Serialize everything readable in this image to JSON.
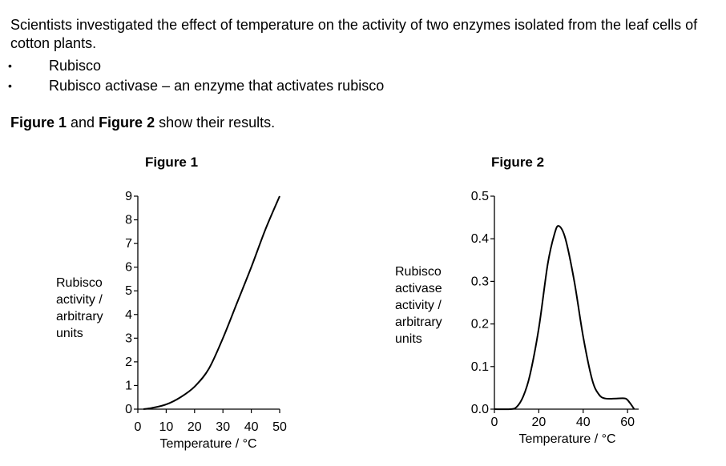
{
  "intro": "Scientists investigated the effect of temperature on the activity of two enzymes isolated from the leaf cells of cotton plants.",
  "bullets": [
    {
      "marker": "•",
      "text": "Rubisco"
    },
    {
      "marker": "•",
      "text": "Rubisco activase – an enzyme that activates rubisco"
    }
  ],
  "figure_line": {
    "fig1": "Figure 1",
    "and": " and ",
    "fig2": "Figure 2",
    "rest": " show their results."
  },
  "chart_data": [
    {
      "type": "line",
      "title": "Figure 1",
      "xlabel": "Temperature / °C",
      "ylabel": [
        "Rubisco",
        "activity /",
        "arbitrary",
        "units"
      ],
      "xlim": [
        0,
        50
      ],
      "ylim": [
        0,
        9
      ],
      "xticks": [
        "0",
        "10",
        "20",
        "30",
        "40",
        "50"
      ],
      "yticks": [
        "0",
        "1",
        "2",
        "3",
        "4",
        "5",
        "6",
        "7",
        "8",
        "9"
      ],
      "x": [
        2,
        5,
        10,
        15,
        20,
        25,
        30,
        35,
        40,
        45,
        50
      ],
      "y": [
        0.0,
        0.05,
        0.2,
        0.5,
        0.95,
        1.7,
        3.0,
        4.5,
        6.0,
        7.6,
        9.0
      ]
    },
    {
      "type": "line",
      "title": "Figure 2",
      "xlabel": "Temperature / °C",
      "ylabel": [
        "Rubisco",
        "activase",
        "activity /",
        "arbitrary",
        "units"
      ],
      "xlim": [
        0,
        65
      ],
      "ylim": [
        0,
        0.5
      ],
      "xticks": [
        "0",
        "20",
        "40",
        "60"
      ],
      "yticks": [
        "0.0",
        "0.1",
        "0.2",
        "0.3",
        "0.4",
        "0.5"
      ],
      "x": [
        0,
        7,
        10,
        13,
        16,
        20,
        24,
        27,
        29,
        32,
        36,
        40,
        44,
        47,
        50,
        55,
        59,
        61,
        63
      ],
      "y": [
        0.0,
        0.0,
        0.005,
        0.03,
        0.08,
        0.19,
        0.34,
        0.41,
        0.43,
        0.4,
        0.3,
        0.17,
        0.07,
        0.035,
        0.025,
        0.025,
        0.025,
        0.015,
        0.0
      ]
    }
  ]
}
